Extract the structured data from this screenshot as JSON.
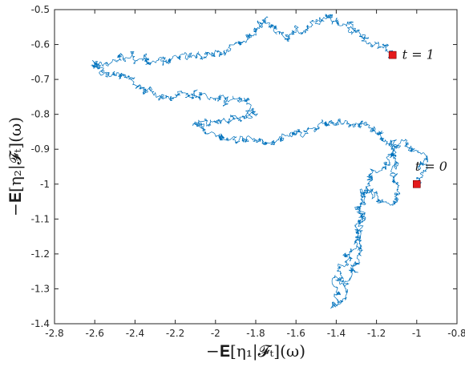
{
  "chart_data": {
    "type": "line",
    "title": "",
    "xlabel": "−𝐄[η₁|𝓕ₜ](ω)",
    "ylabel": "−𝐄[η₂|𝓕ₜ](ω)",
    "xlim": [
      -2.8,
      -0.8
    ],
    "ylim": [
      -1.4,
      -0.5
    ],
    "x_ticks": [
      "-2.8",
      "-2.6",
      "-2.4",
      "-2.2",
      "-2",
      "-1.8",
      "-1.6",
      "-1.4",
      "-1.2",
      "-1",
      "-0.8"
    ],
    "y_ticks": [
      "-0.5",
      "-0.6",
      "-0.7",
      "-0.8",
      "-0.9",
      "-1",
      "-1.1",
      "-1.2",
      "-1.3",
      "-1.4"
    ],
    "grid": false,
    "line_color": "#0072BD",
    "marker_color": "#E41A1C",
    "path_waypoints": [
      [
        -1.0,
        -1.0
      ],
      [
        -0.96,
        -0.93
      ],
      [
        -1.1,
        -0.87
      ],
      [
        -1.12,
        -1.05
      ],
      [
        -1.27,
        -1.02
      ],
      [
        -1.28,
        -1.2
      ],
      [
        -1.4,
        -1.35
      ],
      [
        -1.38,
        -1.28
      ],
      [
        -1.28,
        -1.1
      ],
      [
        -1.24,
        -0.98
      ],
      [
        -1.14,
        -0.94
      ],
      [
        -1.12,
        -0.9
      ],
      [
        -1.25,
        -0.83
      ],
      [
        -1.45,
        -0.83
      ],
      [
        -1.55,
        -0.85
      ],
      [
        -1.75,
        -0.88
      ],
      [
        -1.98,
        -0.87
      ],
      [
        -2.1,
        -0.83
      ],
      [
        -1.95,
        -0.82
      ],
      [
        -1.8,
        -0.8
      ],
      [
        -1.85,
        -0.76
      ],
      [
        -2.1,
        -0.75
      ],
      [
        -2.3,
        -0.74
      ],
      [
        -2.55,
        -0.68
      ],
      [
        -2.62,
        -0.66
      ],
      [
        -2.45,
        -0.64
      ],
      [
        -2.3,
        -0.65
      ],
      [
        -2.15,
        -0.64
      ],
      [
        -1.95,
        -0.62
      ],
      [
        -1.85,
        -0.58
      ],
      [
        -1.75,
        -0.53
      ],
      [
        -1.65,
        -0.58
      ],
      [
        -1.55,
        -0.56
      ],
      [
        -1.45,
        -0.52
      ],
      [
        -1.35,
        -0.54
      ],
      [
        -1.28,
        -0.57
      ],
      [
        -1.2,
        -0.6
      ],
      [
        -1.15,
        -0.62
      ],
      [
        -1.12,
        -0.63
      ]
    ],
    "markers": [
      {
        "x": -1.0,
        "y": -1.0,
        "label": "t = 0"
      },
      {
        "x": -1.12,
        "y": -0.63,
        "label": "t = 1"
      }
    ]
  }
}
